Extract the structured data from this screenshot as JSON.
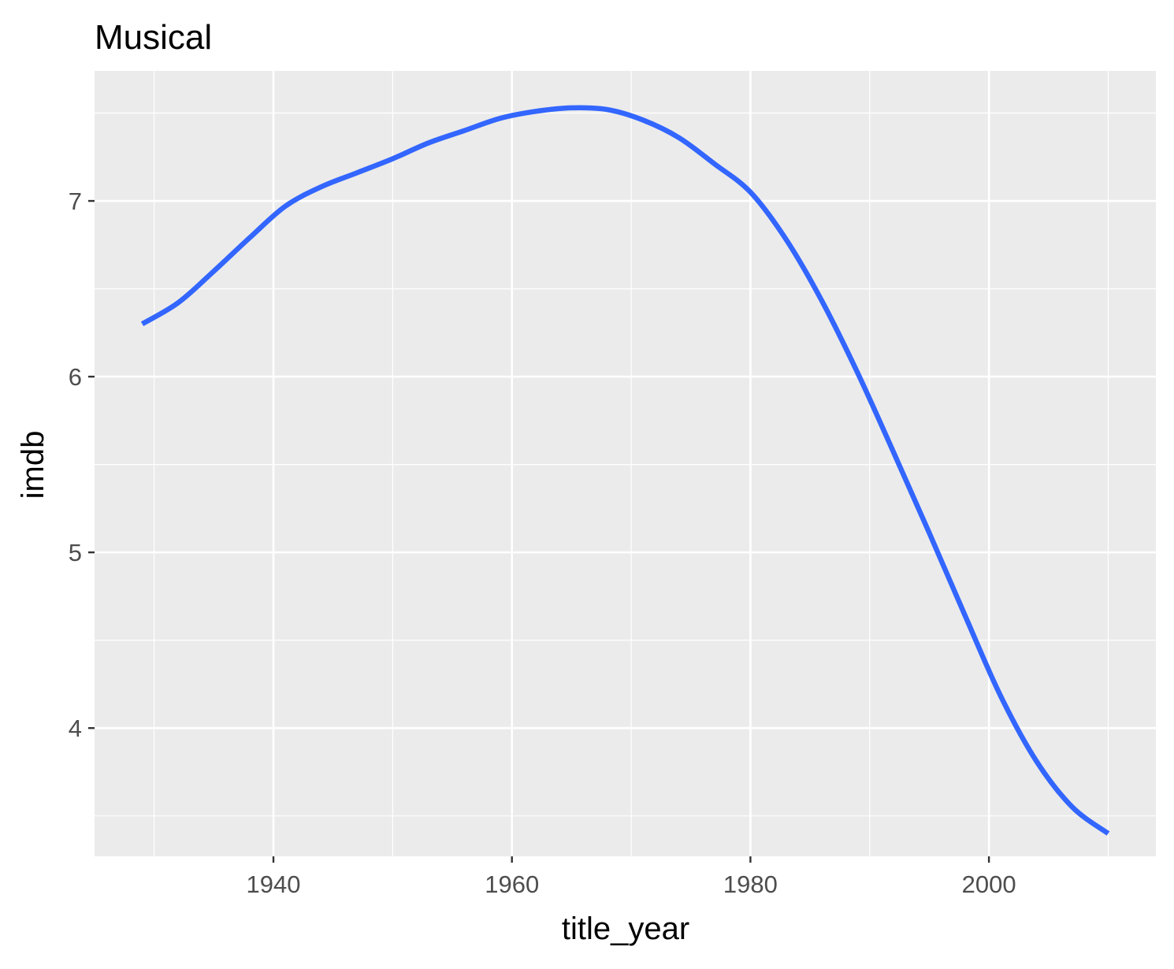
{
  "chart_data": {
    "type": "line",
    "title": "Musical",
    "xlabel": "title_year",
    "ylabel": "imdb",
    "xlim": [
      1925,
      2014
    ],
    "ylim": [
      3.27,
      7.74
    ],
    "x_ticks": [
      1940,
      1960,
      1980,
      2000
    ],
    "x_tick_labels": [
      "1940",
      "1960",
      "1980",
      "2000"
    ],
    "y_ticks": [
      4,
      5,
      6,
      7
    ],
    "y_tick_labels": [
      "4",
      "5",
      "6",
      "7"
    ],
    "grid": true,
    "legend": "none",
    "colors": {
      "panel": "#EBEBEB",
      "grid": "#FFFFFF",
      "line": "#3366FF",
      "tick_text": "#4D4D4D",
      "axis_title": "#000000"
    },
    "series": [
      {
        "x": [
          1929,
          1932,
          1935,
          1938,
          1941,
          1944,
          1947,
          1950,
          1953,
          1956,
          1959,
          1962,
          1965,
          1968,
          1971,
          1974,
          1977,
          1980,
          1983,
          1986,
          1989,
          1992,
          1995,
          1998,
          2001,
          2004,
          2007,
          2010
        ],
        "y": [
          6.3,
          6.42,
          6.6,
          6.79,
          6.97,
          7.08,
          7.16,
          7.24,
          7.33,
          7.4,
          7.47,
          7.51,
          7.53,
          7.52,
          7.46,
          7.36,
          7.21,
          7.05,
          6.78,
          6.43,
          6.02,
          5.57,
          5.11,
          4.64,
          4.18,
          3.81,
          3.55,
          3.4
        ]
      }
    ]
  }
}
